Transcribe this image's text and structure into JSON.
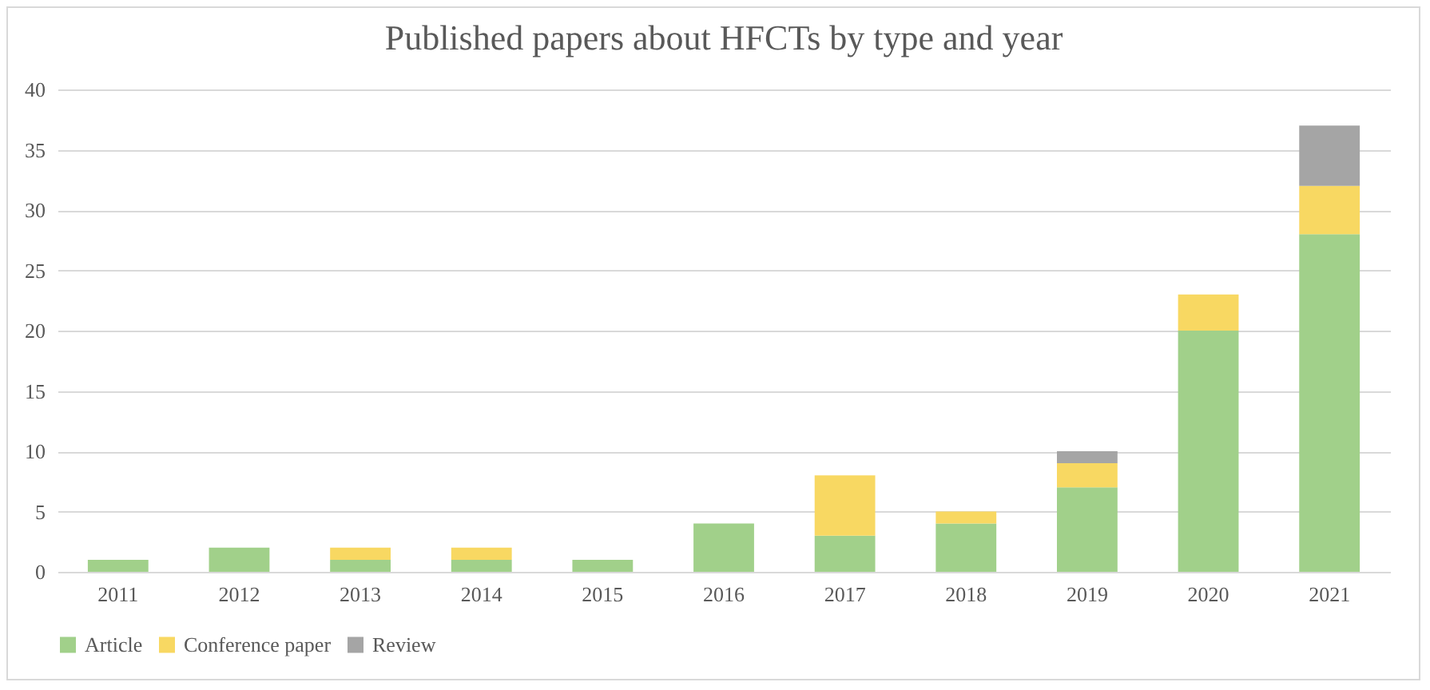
{
  "chart_data": {
    "type": "bar",
    "title": "Published papers about HFCTs by type and year",
    "stacked": true,
    "categories": [
      "2011",
      "2012",
      "2013",
      "2014",
      "2015",
      "2016",
      "2017",
      "2018",
      "2019",
      "2020",
      "2021"
    ],
    "series": [
      {
        "name": "Article",
        "color": "#a1d08a",
        "values": [
          1,
          2,
          1,
          1,
          1,
          4,
          3,
          4,
          7,
          20,
          28
        ]
      },
      {
        "name": "Conference paper",
        "color": "#f8d862",
        "values": [
          0,
          0,
          1,
          1,
          0,
          0,
          5,
          1,
          2,
          3,
          4
        ]
      },
      {
        "name": "Review",
        "color": "#a5a5a5",
        "values": [
          0,
          0,
          0,
          0,
          0,
          0,
          0,
          0,
          1,
          0,
          5
        ]
      }
    ],
    "ylim": [
      0,
      40
    ],
    "yticks": [
      0,
      5,
      10,
      15,
      20,
      25,
      30,
      35,
      40
    ],
    "grid": "y",
    "legend": "bottom"
  }
}
